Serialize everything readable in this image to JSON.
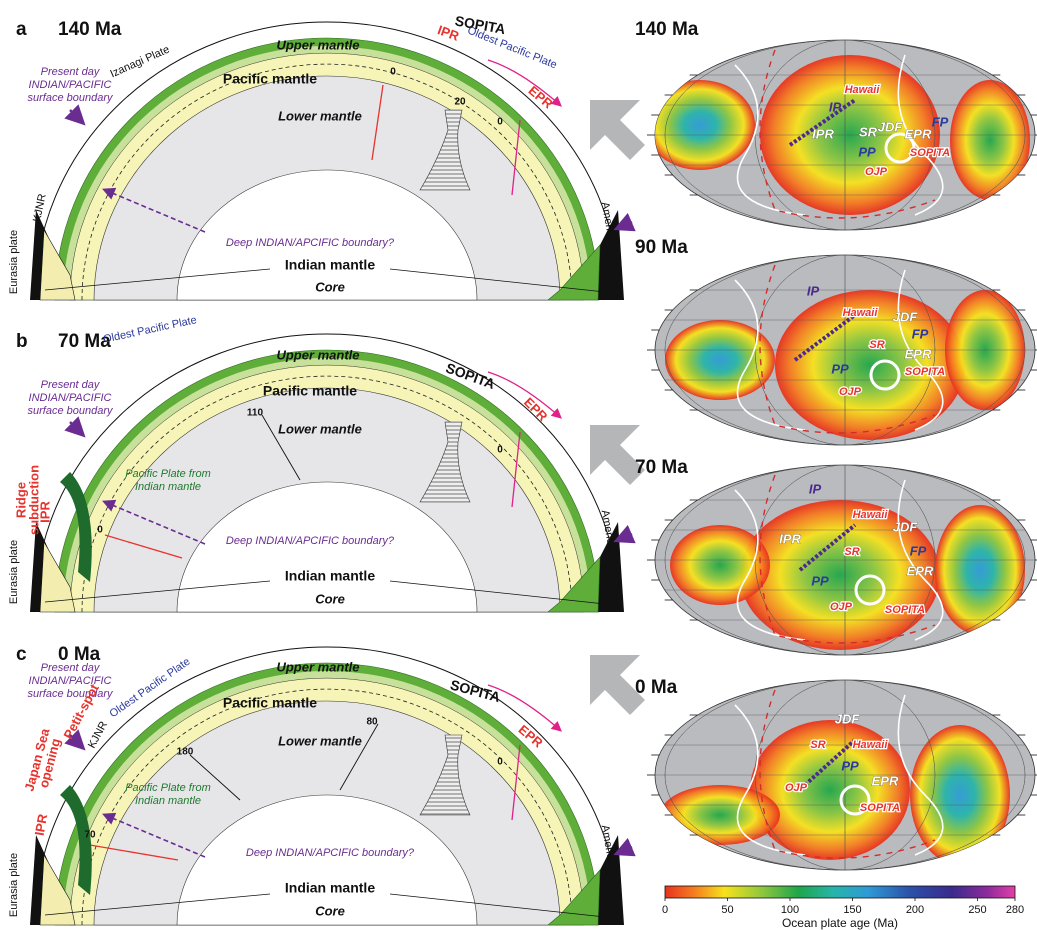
{
  "panels": [
    {
      "letter": "a",
      "age": "140 Ma",
      "labels": [
        "Upper mantle",
        "Pacific mantle",
        "Lower mantle",
        "Indian mantle",
        "Core",
        "IPR",
        "EPR",
        "SOPITA",
        "Oldest Pacific Plate",
        "Izanagi Plate",
        [
          "Present day",
          "INDIAN/PACIFIC",
          "surface boundary"
        ],
        "KJNR",
        "Eurasia plate",
        "America",
        "Deep INDIAN/APCIFIC boundary?",
        "0",
        "20",
        "0"
      ]
    },
    {
      "letter": "b",
      "age": "70 Ma",
      "labels": [
        "Oldest Pacific Plate",
        "Upper mantle",
        "SOPITA",
        "Pacific mantle",
        "110",
        "Lower mantle",
        "EPR",
        "0",
        [
          "Present day",
          "INDIAN/PACIFIC",
          "surface boundary"
        ],
        [
          "Pacific Plate from",
          "Indian mantle"
        ],
        [
          "Ridge",
          "subduction"
        ],
        "IPR",
        "0",
        "Deep INDIAN/APCIFIC boundary?",
        "Eurasia plate",
        "Indian mantle",
        "Core",
        "America"
      ]
    },
    {
      "letter": "c",
      "age": "0 Ma",
      "labels": [
        "Oldest Pacific Plate",
        "Upper mantle",
        "SOPITA",
        "Pacific mantle",
        "80",
        "180",
        "Lower mantle",
        "EPR",
        "0",
        [
          "Present day",
          "INDIAN/PACIFIC",
          "surface boundary"
        ],
        "Petit-spot",
        "KJNR",
        [
          "Japan Sea",
          "opening"
        ],
        "IPR",
        "70",
        [
          "Pacific Plate from",
          "Indian mantle"
        ],
        "Deep INDIAN/APCIFIC boundary?",
        "Indian mantle",
        "Core",
        "Eurasia plate",
        "America"
      ]
    }
  ],
  "maps": [
    {
      "age": "140 Ma",
      "labels": [
        "Hawaii",
        "IP",
        "JDF",
        "FP",
        "IPR",
        "SR",
        "EPR",
        "PP",
        "SOPITA",
        "OJP"
      ]
    },
    {
      "age": "90 Ma",
      "labels": [
        "IP",
        "Hawaii",
        "JDF",
        "FP",
        "SR",
        "EPR",
        "PP",
        "SOPITA",
        "OJP"
      ]
    },
    {
      "age": "70 Ma",
      "labels": [
        "IP",
        "Hawaii",
        "JDF",
        "IPR",
        "SR",
        "FP",
        "EPR",
        "PP",
        "OJP",
        "SOPITA"
      ]
    },
    {
      "age": "0 Ma",
      "labels": [
        "JDF",
        "SR",
        "Hawaii",
        "PP",
        "OJP",
        "EPR",
        "SOPITA"
      ]
    }
  ],
  "colorbar": {
    "ticks": [
      "0",
      "50",
      "100",
      "150",
      "200",
      "250",
      "280"
    ],
    "label": "Ocean plate age (Ma)"
  }
}
